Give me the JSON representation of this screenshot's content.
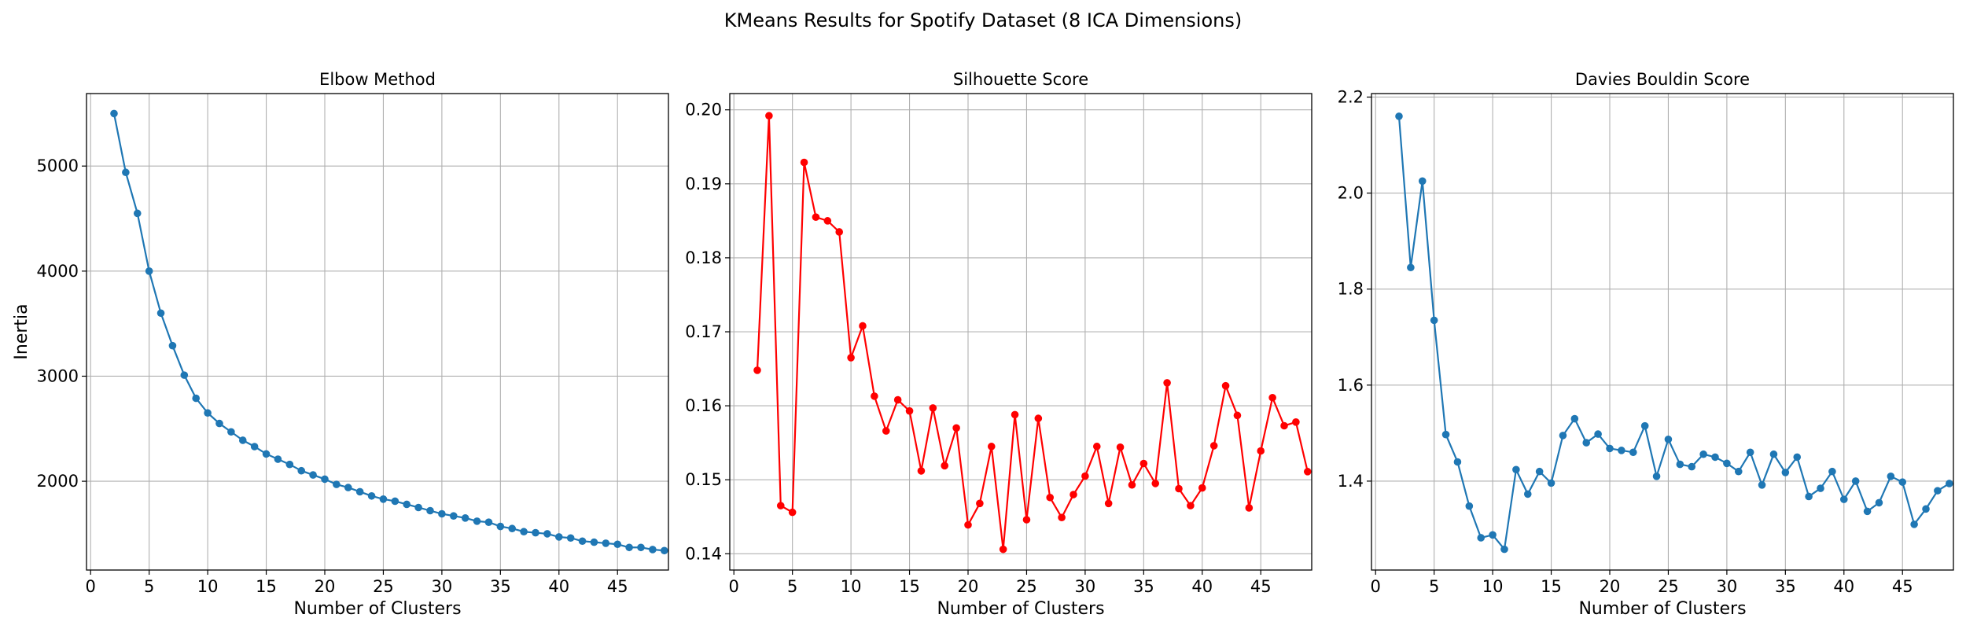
{
  "suptitle": "KMeans Results for Spotify Dataset (8 ICA Dimensions)",
  "chart_data": [
    {
      "type": "line",
      "title": "Elbow Method",
      "xlabel": "Number of Clusters",
      "ylabel": "Inertia",
      "xlim": [
        -0.35,
        49.35
      ],
      "ylim": [
        1155,
        5690
      ],
      "xticks": [
        0,
        5,
        10,
        15,
        20,
        25,
        30,
        35,
        40,
        45
      ],
      "yticks": [
        2000,
        3000,
        4000,
        5000
      ],
      "tick_labels_x": [
        "0",
        "5",
        "10",
        "15",
        "20",
        "25",
        "30",
        "35",
        "40",
        "45"
      ],
      "tick_labels_y": [
        "2000",
        "3000",
        "4000",
        "5000"
      ],
      "grid": true,
      "color": "#1f77b4",
      "series": [
        {
          "x": [
            2,
            3,
            4,
            5,
            6,
            7,
            8,
            9,
            10,
            11,
            12,
            13,
            14,
            15,
            16,
            17,
            18,
            19,
            20,
            21,
            22,
            23,
            24,
            25,
            26,
            27,
            28,
            29,
            30,
            31,
            32,
            33,
            34,
            35,
            36,
            37,
            38,
            39,
            40,
            41,
            42,
            43,
            44,
            45,
            46,
            47,
            48,
            49
          ],
          "y": [
            5500,
            4940,
            4550,
            4000,
            3600,
            3290,
            3010,
            2790,
            2650,
            2550,
            2470,
            2390,
            2330,
            2260,
            2210,
            2160,
            2100,
            2060,
            2020,
            1970,
            1940,
            1900,
            1860,
            1830,
            1810,
            1780,
            1750,
            1720,
            1690,
            1670,
            1650,
            1620,
            1610,
            1570,
            1550,
            1520,
            1510,
            1500,
            1470,
            1460,
            1430,
            1420,
            1410,
            1400,
            1370,
            1370,
            1350,
            1340
          ]
        }
      ]
    },
    {
      "type": "line",
      "title": "Silhouette Score",
      "xlabel": "Number of Clusters",
      "ylabel": "",
      "xlim": [
        -0.35,
        49.35
      ],
      "ylim": [
        0.1378,
        0.2022
      ],
      "xticks": [
        0,
        5,
        10,
        15,
        20,
        25,
        30,
        35,
        40,
        45
      ],
      "yticks": [
        0.14,
        0.15,
        0.16,
        0.17,
        0.18,
        0.19,
        0.2
      ],
      "tick_labels_x": [
        "0",
        "5",
        "10",
        "15",
        "20",
        "25",
        "30",
        "35",
        "40",
        "45"
      ],
      "tick_labels_y": [
        "0.14",
        "0.15",
        "0.16",
        "0.17",
        "0.18",
        "0.19",
        "0.20"
      ],
      "grid": true,
      "color": "#ff0000",
      "series": [
        {
          "x": [
            2,
            3,
            4,
            5,
            6,
            7,
            8,
            9,
            10,
            11,
            12,
            13,
            14,
            15,
            16,
            17,
            18,
            19,
            20,
            21,
            22,
            23,
            24,
            25,
            26,
            27,
            28,
            29,
            30,
            31,
            32,
            33,
            34,
            35,
            36,
            37,
            38,
            39,
            40,
            41,
            42,
            43,
            44,
            45,
            46,
            47,
            48,
            49
          ],
          "y": [
            0.1648,
            0.1992,
            0.1465,
            0.1456,
            0.1929,
            0.1855,
            0.185,
            0.1835,
            0.1665,
            0.1708,
            0.1613,
            0.1566,
            0.1608,
            0.1593,
            0.1512,
            0.1597,
            0.1519,
            0.157,
            0.1439,
            0.1468,
            0.1545,
            0.1406,
            0.1588,
            0.1446,
            0.1583,
            0.1476,
            0.1449,
            0.148,
            0.1505,
            0.1545,
            0.1468,
            0.1544,
            0.1493,
            0.1522,
            0.1495,
            0.1631,
            0.1488,
            0.1465,
            0.1489,
            0.1546,
            0.1627,
            0.1587,
            0.1462,
            0.1539,
            0.1611,
            0.1573,
            0.1578,
            0.1511
          ]
        }
      ]
    },
    {
      "type": "line",
      "title": "Davies Bouldin Score",
      "xlabel": "Number of Clusters",
      "ylabel": "",
      "xlim": [
        -0.35,
        49.35
      ],
      "ylim": [
        1.2148,
        2.2073
      ],
      "xticks": [
        0,
        5,
        10,
        15,
        20,
        25,
        30,
        35,
        40,
        45
      ],
      "yticks": [
        1.4,
        1.6,
        1.8,
        2.0,
        2.2
      ],
      "tick_labels_x": [
        "0",
        "5",
        "10",
        "15",
        "20",
        "25",
        "30",
        "35",
        "40",
        "45"
      ],
      "tick_labels_y": [
        "1.4",
        "1.6",
        "1.8",
        "2.0",
        "2.2"
      ],
      "grid": true,
      "color": "#1f77b4",
      "series": [
        {
          "x": [
            2,
            3,
            4,
            5,
            6,
            7,
            8,
            9,
            10,
            11,
            12,
            13,
            14,
            15,
            16,
            17,
            18,
            19,
            20,
            21,
            22,
            23,
            24,
            25,
            26,
            27,
            28,
            29,
            30,
            31,
            32,
            33,
            34,
            35,
            36,
            37,
            38,
            39,
            40,
            41,
            42,
            43,
            44,
            45,
            46,
            47,
            48,
            49
          ],
          "y": [
            2.16,
            1.845,
            2.025,
            1.735,
            1.497,
            1.44,
            1.348,
            1.282,
            1.288,
            1.258,
            1.424,
            1.373,
            1.42,
            1.396,
            1.495,
            1.53,
            1.48,
            1.498,
            1.468,
            1.464,
            1.46,
            1.515,
            1.41,
            1.487,
            1.435,
            1.43,
            1.456,
            1.45,
            1.437,
            1.42,
            1.46,
            1.392,
            1.456,
            1.418,
            1.45,
            1.368,
            1.385,
            1.42,
            1.362,
            1.4,
            1.337,
            1.355,
            1.41,
            1.398,
            1.31,
            1.342,
            1.38,
            1.395
          ]
        }
      ]
    }
  ]
}
